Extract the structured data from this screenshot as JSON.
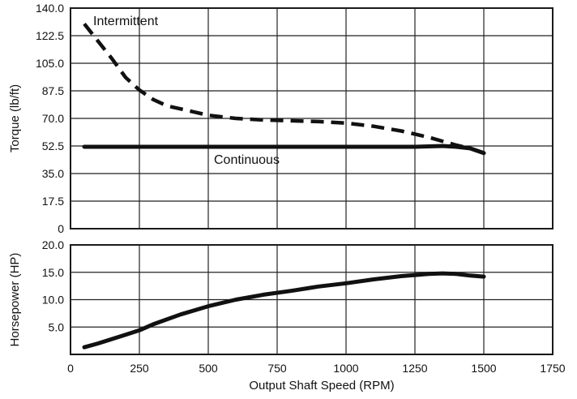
{
  "chart_data": [
    {
      "type": "line",
      "title": "",
      "xlabel": "",
      "ylabel": "Torque (lb/ft)",
      "xlim": [
        0,
        1750
      ],
      "ylim": [
        0,
        140
      ],
      "x_ticks": [
        0,
        250,
        500,
        750,
        1000,
        1250,
        1500,
        1750
      ],
      "y_tick_labels": [
        "0",
        "17.5",
        "35.0",
        "52.5",
        "70.0",
        "87.5",
        "105.0",
        "122.5",
        "140.0"
      ],
      "grid": true,
      "colors": {
        "line": "#111111",
        "grid": "#222222",
        "background": "#ffffff"
      },
      "series": [
        {
          "name": "Intermittent",
          "style": "dashed",
          "x": [
            50,
            100,
            150,
            200,
            250,
            300,
            350,
            400,
            450,
            500,
            550,
            600,
            700,
            800,
            900,
            1000,
            1100,
            1200,
            1300,
            1400,
            1450,
            1500
          ],
          "y": [
            130,
            119,
            108,
            96,
            88,
            82,
            78,
            76,
            74,
            72,
            71,
            70,
            69,
            68.5,
            68,
            67,
            65,
            62,
            58,
            53,
            51,
            48
          ]
        },
        {
          "name": "Continuous",
          "style": "solid",
          "x": [
            50,
            250,
            500,
            750,
            1000,
            1250,
            1350,
            1400,
            1450,
            1500
          ],
          "y": [
            52,
            52,
            52,
            52,
            52,
            52,
            52.5,
            52,
            51,
            48
          ]
        }
      ]
    },
    {
      "type": "line",
      "title": "",
      "xlabel": "Output Shaft Speed (RPM)",
      "ylabel": "Horsepower (HP)",
      "xlim": [
        0,
        1750
      ],
      "ylim": [
        0,
        20
      ],
      "x_ticks": [
        0,
        250,
        500,
        750,
        1000,
        1250,
        1500,
        1750
      ],
      "x_tick_labels": [
        "0",
        "250",
        "500",
        "750",
        "1000",
        "1250",
        "1500",
        "1750"
      ],
      "y_tick_labels": [
        "5.0",
        "10.0",
        "15.0",
        "20.0"
      ],
      "grid": true,
      "colors": {
        "line": "#111111",
        "grid": "#222222",
        "background": "#ffffff"
      },
      "series": [
        {
          "style": "solid",
          "x": [
            50,
            100,
            150,
            200,
            250,
            300,
            400,
            500,
            600,
            700,
            800,
            900,
            1000,
            1100,
            1200,
            1300,
            1350,
            1400,
            1450,
            1500
          ],
          "y": [
            1.3,
            2.0,
            2.8,
            3.6,
            4.4,
            5.5,
            7.3,
            8.8,
            10.0,
            10.9,
            11.6,
            12.4,
            13.0,
            13.7,
            14.3,
            14.7,
            14.8,
            14.7,
            14.4,
            14.2
          ]
        }
      ]
    }
  ]
}
